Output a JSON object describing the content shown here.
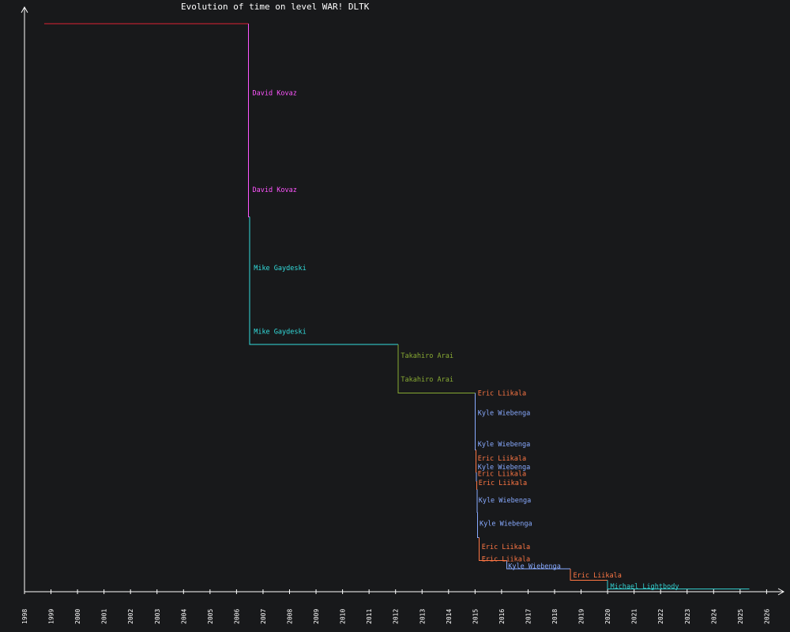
{
  "colors": {
    "background": "#18191b",
    "axis": "#ffffff",
    "text": "#ffffff",
    "players": {
      "David Kovaz": "#ff55ff",
      "Mike Gaydeski": "#33dddd",
      "Takahiro Arai": "#88aa33",
      "Eric Liikala": "#ff7744",
      "Kyle Wiebenga": "#88aaff",
      "Michael Lightbody": "#33cccc",
      "initial": "#dd2233"
    }
  },
  "chart_data": {
    "type": "line",
    "step": true,
    "title": "Evolution of time on level WAR! DLTK",
    "xlabel": "",
    "ylabel": "",
    "xlim": [
      1998,
      2026.6
    ],
    "ylim": [
      0,
      1
    ],
    "grid": false,
    "x_ticks": [
      "1998",
      "1999",
      "2000",
      "2001",
      "2002",
      "2003",
      "2004",
      "2005",
      "2006",
      "2007",
      "2008",
      "2009",
      "2010",
      "2011",
      "2012",
      "2013",
      "2014",
      "2015",
      "2016",
      "2017",
      "2018",
      "2019",
      "2020",
      "2021",
      "2022",
      "2023",
      "2024",
      "2025",
      "2026"
    ],
    "records": [
      {
        "player": "",
        "date": 1998.75,
        "value": 1.0
      },
      {
        "player": "David Kovaz",
        "date": 2006.45,
        "value": 0.66
      },
      {
        "player": "Mike Gaydeski",
        "date": 2006.5,
        "value": 0.435
      },
      {
        "player": "Takahiro Arai",
        "date": 2012.1,
        "value": 0.35
      },
      {
        "player": "Eric Liikala",
        "date": 2015.0,
        "value": 0.35
      },
      {
        "player": "Kyle Wiebenga",
        "date": 2015.0,
        "value": 0.25
      },
      {
        "player": "Eric Liikala",
        "date": 2015.03,
        "value": 0.21
      },
      {
        "player": "Kyle Wiebenga",
        "date": 2015.05,
        "value": 0.195
      },
      {
        "player": "Eric Liikala",
        "date": 2015.07,
        "value": 0.18
      },
      {
        "player": "Kyle Wiebenga",
        "date": 2015.08,
        "value": 0.14
      },
      {
        "player": "Kyle Wiebenga",
        "date": 2015.1,
        "value": 0.095
      },
      {
        "player": "Eric Liikala",
        "date": 2015.15,
        "value": 0.055
      },
      {
        "player": "Kyle Wiebenga",
        "date": 2016.2,
        "value": 0.04
      },
      {
        "player": "Eric Liikala",
        "date": 2018.6,
        "value": 0.02
      },
      {
        "player": "Michael Lightbody",
        "date": 2020.0,
        "value": 0.005
      }
    ],
    "end_date": 2025.35,
    "annotations": [
      {
        "text": "David Kovaz",
        "player": "David Kovaz",
        "x": 2006.6,
        "y": 0.878
      },
      {
        "text": "David Kovaz",
        "player": "David Kovaz",
        "x": 2006.6,
        "y": 0.708
      },
      {
        "text": "Mike Gaydeski",
        "player": "Mike Gaydeski",
        "x": 2006.65,
        "y": 0.57
      },
      {
        "text": "Mike Gaydeski",
        "player": "Mike Gaydeski",
        "x": 2006.65,
        "y": 0.458
      },
      {
        "text": "Takahiro Arai",
        "player": "Takahiro Arai",
        "x": 2012.2,
        "y": 0.416
      },
      {
        "text": "Takahiro Arai",
        "player": "Takahiro Arai",
        "x": 2012.2,
        "y": 0.374
      },
      {
        "text": "Eric Liikala",
        "player": "Eric Liikala",
        "x": 2015.1,
        "y": 0.35
      },
      {
        "text": "Kyle Wiebenga",
        "player": "Kyle Wiebenga",
        "x": 2015.1,
        "y": 0.315
      },
      {
        "text": "Kyle Wiebenga",
        "player": "Kyle Wiebenga",
        "x": 2015.1,
        "y": 0.26
      },
      {
        "text": "Eric Liikala",
        "player": "Eric Liikala",
        "x": 2015.1,
        "y": 0.235
      },
      {
        "text": "Kyle Wiebenga",
        "player": "Kyle Wiebenga",
        "x": 2015.1,
        "y": 0.22
      },
      {
        "text": "Eric Liikala",
        "player": "Eric Liikala",
        "x": 2015.1,
        "y": 0.208
      },
      {
        "text": "Eric Liikala",
        "player": "Eric Liikala",
        "x": 2015.13,
        "y": 0.192
      },
      {
        "text": "Kyle Wiebenga",
        "player": "Kyle Wiebenga",
        "x": 2015.13,
        "y": 0.161
      },
      {
        "text": "Kyle Wiebenga",
        "player": "Kyle Wiebenga",
        "x": 2015.17,
        "y": 0.12
      },
      {
        "text": "Eric Liikala",
        "player": "Eric Liikala",
        "x": 2015.25,
        "y": 0.079
      },
      {
        "text": "Eric Liikala",
        "player": "Eric Liikala",
        "x": 2015.25,
        "y": 0.058
      },
      {
        "text": "Kyle Wiebenga",
        "player": "Kyle Wiebenga",
        "x": 2016.25,
        "y": 0.045
      },
      {
        "text": "Eric Liikala",
        "player": "Eric Liikala",
        "x": 2018.7,
        "y": 0.029
      },
      {
        "text": "Michael Lightbody",
        "player": "Michael Lightbody",
        "x": 2020.1,
        "y": 0.01
      }
    ]
  }
}
